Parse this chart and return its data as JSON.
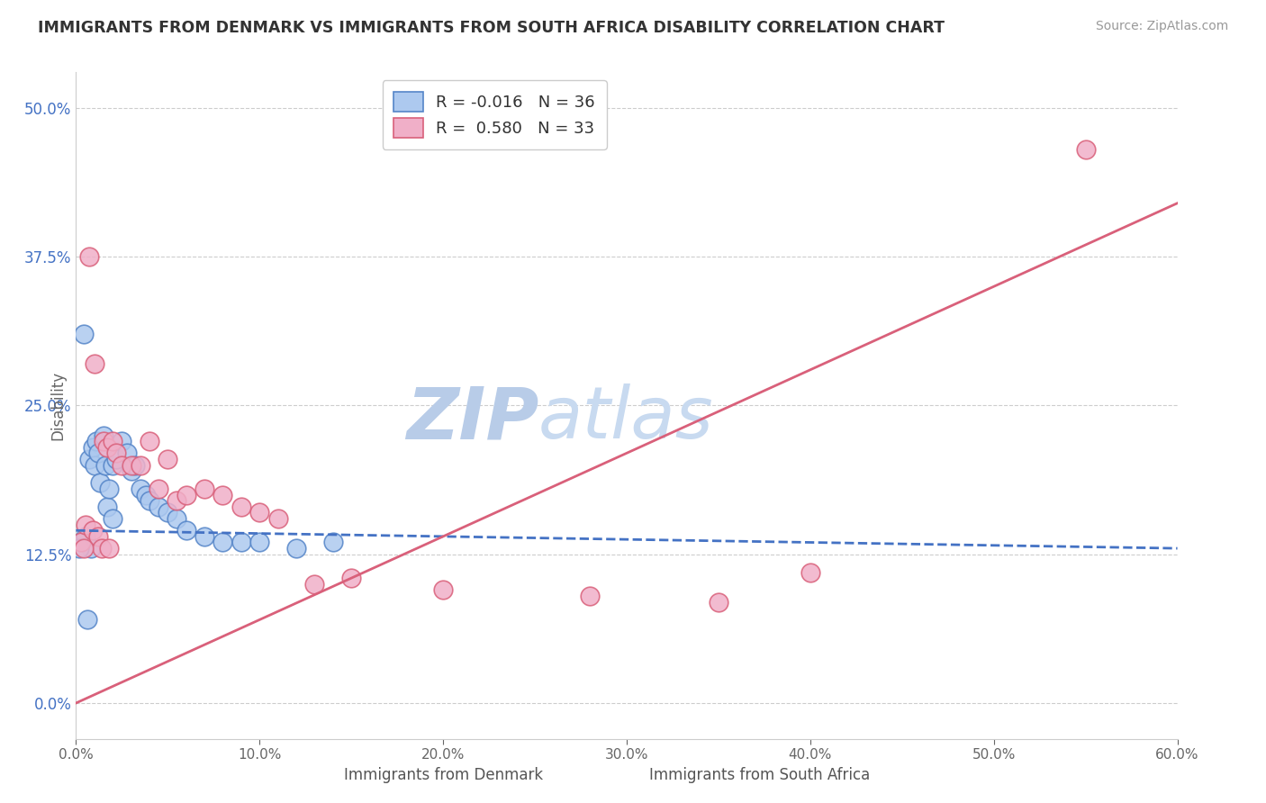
{
  "title": "IMMIGRANTS FROM DENMARK VS IMMIGRANTS FROM SOUTH AFRICA DISABILITY CORRELATION CHART",
  "source": "Source: ZipAtlas.com",
  "ylabel": "Disability",
  "xlim": [
    0.0,
    60.0
  ],
  "ylim": [
    -3.0,
    53.0
  ],
  "yticks": [
    0.0,
    12.5,
    25.0,
    37.5,
    50.0
  ],
  "ytick_labels": [
    "0.0%",
    "12.5%",
    "25.0%",
    "37.5%",
    "50.0%"
  ],
  "legend_denmark_R": "-0.016",
  "legend_denmark_N": "36",
  "legend_southafrica_R": "0.580",
  "legend_southafrica_N": "33",
  "denmark_color": "#adc9ef",
  "southafrica_color": "#f0afc8",
  "denmark_edge_color": "#5585c8",
  "southafrica_edge_color": "#d9607a",
  "denmark_line_color": "#4472c4",
  "southafrica_line_color": "#d9607a",
  "watermark_color": "#d0e0f5",
  "background_color": "#ffffff",
  "denmark_scatter_x": [
    0.3,
    0.5,
    0.7,
    0.8,
    0.9,
    1.0,
    1.1,
    1.2,
    1.3,
    1.5,
    1.6,
    1.7,
    1.8,
    2.0,
    2.0,
    2.2,
    2.5,
    2.8,
    3.0,
    3.2,
    3.5,
    3.8,
    4.0,
    4.5,
    5.0,
    5.5,
    6.0,
    7.0,
    8.0,
    9.0,
    10.0,
    12.0,
    14.0,
    0.4,
    0.6,
    0.2
  ],
  "denmark_scatter_y": [
    13.5,
    14.0,
    20.5,
    13.0,
    21.5,
    20.0,
    22.0,
    21.0,
    18.5,
    22.5,
    20.0,
    16.5,
    18.0,
    15.5,
    20.0,
    20.5,
    22.0,
    21.0,
    19.5,
    20.0,
    18.0,
    17.5,
    17.0,
    16.5,
    16.0,
    15.5,
    14.5,
    14.0,
    13.5,
    13.5,
    13.5,
    13.0,
    13.5,
    31.0,
    7.0,
    13.0
  ],
  "southafrica_scatter_x": [
    0.3,
    0.5,
    0.7,
    0.9,
    1.0,
    1.2,
    1.4,
    1.5,
    1.7,
    2.0,
    2.2,
    2.5,
    3.0,
    3.5,
    4.0,
    4.5,
    5.0,
    5.5,
    6.0,
    7.0,
    8.0,
    9.0,
    10.0,
    11.0,
    13.0,
    15.0,
    20.0,
    28.0,
    35.0,
    40.0,
    0.4,
    1.8,
    55.0
  ],
  "southafrica_scatter_y": [
    13.5,
    15.0,
    37.5,
    14.5,
    28.5,
    14.0,
    13.0,
    22.0,
    21.5,
    22.0,
    21.0,
    20.0,
    20.0,
    20.0,
    22.0,
    18.0,
    20.5,
    17.0,
    17.5,
    18.0,
    17.5,
    16.5,
    16.0,
    15.5,
    10.0,
    10.5,
    9.5,
    9.0,
    8.5,
    11.0,
    13.0,
    13.0,
    46.5
  ],
  "sa_line_x0": 0.0,
  "sa_line_y0": 0.0,
  "sa_line_x1": 60.0,
  "sa_line_y1": 42.0,
  "dk_line_x0": 0.0,
  "dk_line_y0": 14.5,
  "dk_line_x1": 60.0,
  "dk_line_y1": 13.0
}
